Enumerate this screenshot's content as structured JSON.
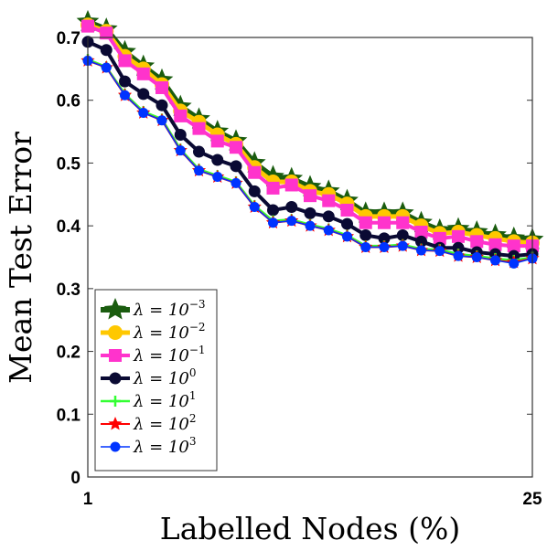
{
  "chart_data": {
    "type": "line",
    "xlabel": "Labelled Nodes (%)",
    "ylabel": "Mean Test Error",
    "xlim": [
      1,
      25
    ],
    "ylim": [
      0,
      0.7
    ],
    "xticks": [
      1,
      25
    ],
    "yticks": [
      0,
      0.1,
      0.2,
      0.3,
      0.4,
      0.5,
      0.6,
      0.7
    ],
    "grid": false,
    "legend_position": "bottom-left",
    "x": [
      1,
      2,
      3,
      4,
      5,
      6,
      7,
      8,
      9,
      10,
      11,
      12,
      13,
      14,
      15,
      16,
      17,
      18,
      19,
      20,
      21,
      22,
      23,
      24,
      25
    ],
    "series": [
      {
        "name": "λ = 10^-3",
        "label_base": "λ = 10",
        "label_exp": "−3",
        "color": "#1a5c0f",
        "marker": "star",
        "line_width": 6,
        "values": [
          0.725,
          0.713,
          0.677,
          0.654,
          0.632,
          0.59,
          0.57,
          0.55,
          0.535,
          0.5,
          0.478,
          0.475,
          0.462,
          0.455,
          0.44,
          0.42,
          0.42,
          0.42,
          0.405,
          0.393,
          0.395,
          0.39,
          0.385,
          0.38,
          0.378
        ]
      },
      {
        "name": "λ = 10^-2",
        "label_base": "λ = 10",
        "label_exp": "−2",
        "color": "#ffc800",
        "marker": "circle",
        "line_width": 5,
        "values": [
          0.72,
          0.71,
          0.67,
          0.65,
          0.625,
          0.583,
          0.565,
          0.545,
          0.53,
          0.493,
          0.47,
          0.47,
          0.455,
          0.45,
          0.435,
          0.415,
          0.415,
          0.415,
          0.4,
          0.388,
          0.39,
          0.385,
          0.38,
          0.375,
          0.373
        ]
      },
      {
        "name": "λ = 10^-1",
        "label_base": "λ = 10",
        "label_exp": "−1",
        "color": "#ff33cc",
        "marker": "square",
        "line_width": 4,
        "values": [
          0.718,
          0.707,
          0.663,
          0.642,
          0.62,
          0.575,
          0.555,
          0.535,
          0.525,
          0.485,
          0.46,
          0.465,
          0.448,
          0.44,
          0.425,
          0.405,
          0.405,
          0.405,
          0.39,
          0.38,
          0.383,
          0.375,
          0.37,
          0.368,
          0.368
        ]
      },
      {
        "name": "λ = 10^0",
        "label_base": "λ = 10",
        "label_exp": "0",
        "color": "#0a0a33",
        "marker": "circle",
        "line_width": 4,
        "values": [
          0.693,
          0.68,
          0.63,
          0.61,
          0.592,
          0.545,
          0.518,
          0.505,
          0.495,
          0.455,
          0.425,
          0.43,
          0.42,
          0.415,
          0.403,
          0.385,
          0.38,
          0.385,
          0.375,
          0.365,
          0.365,
          0.358,
          0.355,
          0.352,
          0.355
        ]
      },
      {
        "name": "λ = 10^1",
        "label_base": "λ = 10",
        "label_exp": "1",
        "color": "#33ff33",
        "marker": "plus",
        "line_width": 2.5,
        "values": [
          0.665,
          0.653,
          0.61,
          0.582,
          0.57,
          0.522,
          0.49,
          0.48,
          0.47,
          0.432,
          0.408,
          0.41,
          0.402,
          0.395,
          0.385,
          0.368,
          0.368,
          0.37,
          0.363,
          0.362,
          0.355,
          0.352,
          0.348,
          0.345,
          0.35
        ]
      },
      {
        "name": "λ = 10^2",
        "label_base": "λ = 10",
        "label_exp": "2",
        "color": "#ff0000",
        "marker": "star",
        "line_width": 2,
        "values": [
          0.663,
          0.652,
          0.608,
          0.58,
          0.568,
          0.52,
          0.488,
          0.478,
          0.468,
          0.43,
          0.405,
          0.408,
          0.4,
          0.393,
          0.383,
          0.366,
          0.366,
          0.368,
          0.361,
          0.36,
          0.352,
          0.35,
          0.345,
          0.342,
          0.348
        ]
      },
      {
        "name": "λ = 10^3",
        "label_base": "λ = 10",
        "label_exp": "3",
        "color": "#0033ff",
        "marker": "circle",
        "line_width": 1.5,
        "values": [
          0.663,
          0.652,
          0.608,
          0.58,
          0.568,
          0.52,
          0.488,
          0.478,
          0.468,
          0.43,
          0.405,
          0.408,
          0.4,
          0.393,
          0.383,
          0.366,
          0.366,
          0.368,
          0.361,
          0.36,
          0.352,
          0.35,
          0.345,
          0.34,
          0.348
        ]
      }
    ]
  }
}
